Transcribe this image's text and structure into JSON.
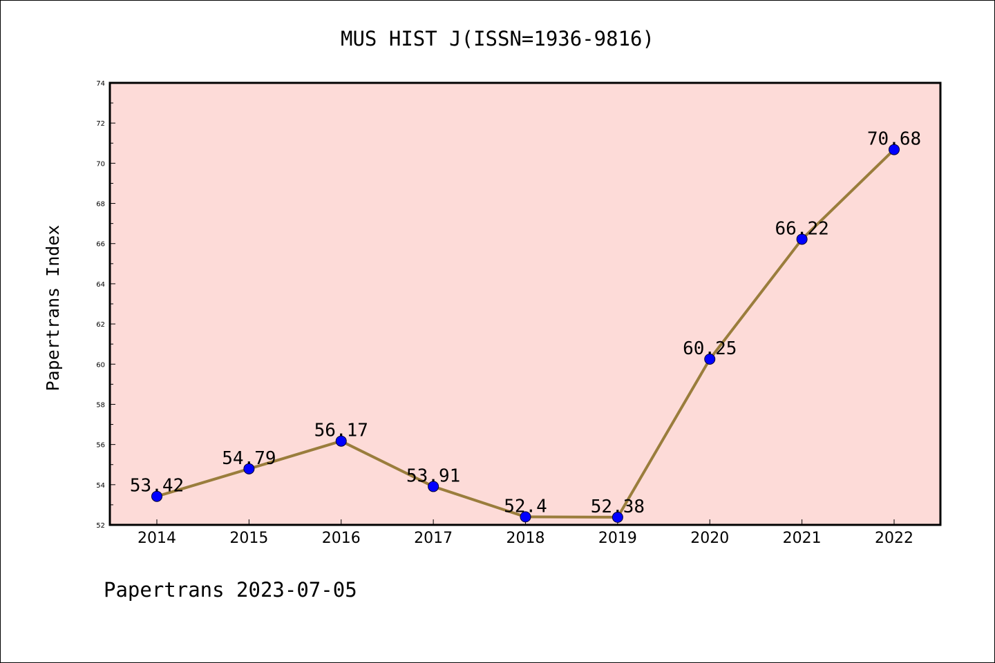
{
  "chart_data": {
    "type": "line",
    "title": "MUS HIST J(ISSN=1936-9816)",
    "ylabel": "Papertrans Index",
    "xlabel": "",
    "footer": "Papertrans 2023-07-05",
    "categories": [
      "2014",
      "2015",
      "2016",
      "2017",
      "2018",
      "2019",
      "2020",
      "2021",
      "2022"
    ],
    "series": [
      {
        "values": [
          53.42,
          54.79,
          56.17,
          53.91,
          52.4,
          52.38,
          60.25,
          66.22,
          70.68
        ],
        "data_labels": [
          "53.42",
          "54.79",
          "56.17",
          "53.91",
          "52.4",
          "52.38",
          "60.25",
          "66.22",
          "70.68"
        ]
      }
    ],
    "ylim": [
      52,
      74
    ],
    "yticks": [
      "52",
      "54",
      "56",
      "58",
      "60",
      "62",
      "64",
      "66",
      "68",
      "70",
      "72",
      "74"
    ],
    "grid": false,
    "colors": {
      "plot_background": "#fddbd8",
      "line": "#9a7d3c",
      "marker": "#0000ff"
    }
  }
}
